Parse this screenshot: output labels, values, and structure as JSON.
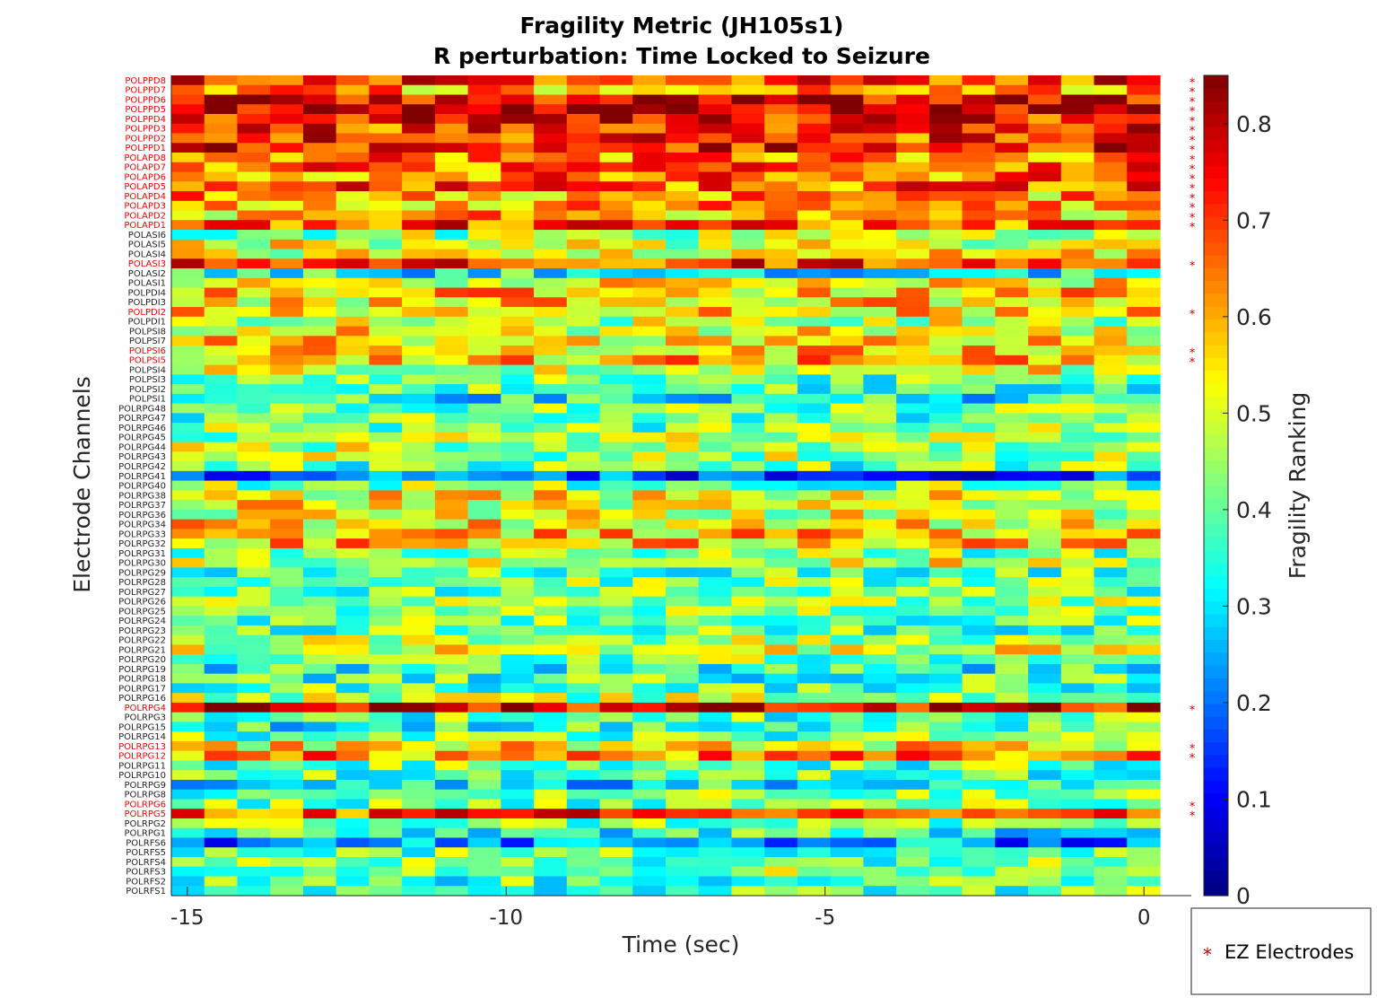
{
  "chart_data": {
    "type": "heatmap",
    "title": "Fragility Metric (JH105s1)",
    "subtitle": "R perturbation:  Time Locked to Seizure",
    "xlabel": "Time (sec)",
    "ylabel": "Electrode Channels",
    "xlim": [
      -15.25,
      0.25
    ],
    "x_ticks": [
      -15,
      -10,
      -5,
      0
    ],
    "colorbar": {
      "label": "Fragility Ranking",
      "colormap": "jet",
      "clim": [
        0,
        0.85
      ],
      "ticks": [
        0,
        0.1,
        0.2,
        0.3,
        0.4,
        0.5,
        0.6,
        0.7,
        0.8
      ]
    },
    "time_windows": [
      -15,
      -14.5,
      -14,
      -13.5,
      -13,
      -12.5,
      -12,
      -11.5,
      -11,
      -10.5,
      -10,
      -9.5,
      -9,
      -8.5,
      -8,
      -7.5,
      -7,
      -6.5,
      -6,
      -5.5,
      -5,
      -4.5,
      -4,
      -3.5,
      -3,
      -2.5,
      -2,
      -1.5,
      -1,
      -0.5
    ],
    "channels": [
      "POLPPD8",
      "POLPPD7",
      "POLPPD6",
      "POLPPD5",
      "POLPPD4",
      "POLPPD3",
      "POLPPD2",
      "POLPPD1",
      "POLAPD8",
      "POLAPD7",
      "POLAPD6",
      "POLAPD5",
      "POLAPD4",
      "POLAPD3",
      "POLAPD2",
      "POLAPD1",
      "POLASI6",
      "POLASI5",
      "POLASI4",
      "POLASI3",
      "POLASI2",
      "POLASI1",
      "POLPDI4",
      "POLPDI3",
      "POLPDI2",
      "POLPDI1",
      "POLPSI8",
      "POLPSI7",
      "POLPSI6",
      "POLPSI5",
      "POLPSI4",
      "POLPSI3",
      "POLPSI2",
      "POLPSI1",
      "POLRPG48",
      "POLRPG47",
      "POLRPG46",
      "POLRPG45",
      "POLRPG44",
      "POLRPG43",
      "POLRPG42",
      "POLRPG41",
      "POLRPG40",
      "POLRPG38",
      "POLRPG37",
      "POLRPG36",
      "POLRPG34",
      "POLRPG33",
      "POLRPG32",
      "POLRPG31",
      "POLRPG30",
      "POLRPG29",
      "POLRPG28",
      "POLRPG27",
      "POLRPG26",
      "POLRPG25",
      "POLRPG24",
      "POLRPG23",
      "POLRPG22",
      "POLRPG21",
      "POLRPG20",
      "POLRPG19",
      "POLRPG18",
      "POLRPG17",
      "POLRPG16",
      "POLRPG4",
      "POLRPG3",
      "POLRPG15",
      "POLRPG14",
      "POLRPG13",
      "POLRPG12",
      "POLRPG11",
      "POLRPG10",
      "POLRPG9",
      "POLRPG8",
      "POLRPG6",
      "POLRPG5",
      "POLRPG2",
      "POLRPG1",
      "POLRFS6",
      "POLRFS5",
      "POLRFS4",
      "POLRFS3",
      "POLRFS2",
      "POLRFS1"
    ],
    "ez_channels": [
      "POLPPD8",
      "POLPPD7",
      "POLPPD6",
      "POLPPD5",
      "POLPPD4",
      "POLPPD3",
      "POLPPD2",
      "POLPPD1",
      "POLAPD8",
      "POLAPD7",
      "POLAPD6",
      "POLAPD5",
      "POLAPD4",
      "POLAPD3",
      "POLAPD2",
      "POLAPD1",
      "POLASI3",
      "POLPDI2",
      "POLPSI6",
      "POLPSI5",
      "POLRPG4",
      "POLRPG13",
      "POLRPG12",
      "POLRPG6",
      "POLRPG5"
    ],
    "ez_color": "#ff0000",
    "row_means": [
      0.7,
      0.6,
      0.78,
      0.8,
      0.72,
      0.7,
      0.7,
      0.74,
      0.64,
      0.66,
      0.64,
      0.66,
      0.6,
      0.6,
      0.58,
      0.68,
      0.45,
      0.5,
      0.52,
      0.7,
      0.32,
      0.52,
      0.58,
      0.55,
      0.57,
      0.48,
      0.52,
      0.55,
      0.56,
      0.58,
      0.5,
      0.4,
      0.38,
      0.33,
      0.4,
      0.4,
      0.42,
      0.45,
      0.47,
      0.45,
      0.4,
      0.18,
      0.42,
      0.52,
      0.52,
      0.5,
      0.55,
      0.57,
      0.57,
      0.42,
      0.5,
      0.38,
      0.42,
      0.4,
      0.47,
      0.42,
      0.4,
      0.4,
      0.45,
      0.5,
      0.42,
      0.35,
      0.38,
      0.4,
      0.45,
      0.78,
      0.4,
      0.35,
      0.4,
      0.55,
      0.62,
      0.4,
      0.38,
      0.32,
      0.4,
      0.42,
      0.68,
      0.42,
      0.35,
      0.22,
      0.4,
      0.42,
      0.45,
      0.38,
      0.4
    ],
    "noise_amplitude": 0.14,
    "seed": 105
  },
  "legend": {
    "marker": "*",
    "label": "EZ Electrodes",
    "placement": "bottom-right outside"
  }
}
